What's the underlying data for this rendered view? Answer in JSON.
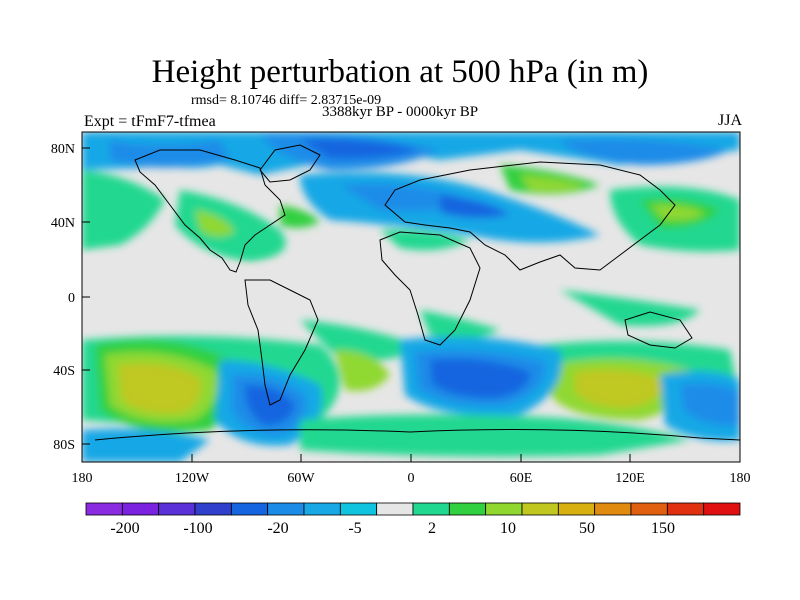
{
  "header": {
    "title": "Height perturbation at 500 hPa (in m)",
    "stats": "rmsd= 8.10746 diff= 2.83715e-09",
    "experiment": "Expt = tFmF7-tfmea",
    "period": "3388kyr BP - 0000kyr BP",
    "season": "JJA"
  },
  "map": {
    "lat_ticks": [
      "80N",
      "40N",
      "0",
      "40S",
      "80S"
    ],
    "lon_ticks": [
      "180",
      "120W",
      "60W",
      "0",
      "60E",
      "120E",
      "180"
    ]
  },
  "colorbar": {
    "colors": [
      "#8a2be2",
      "#7a22e0",
      "#5c30d8",
      "#3040cc",
      "#1565e0",
      "#1a8ce8",
      "#18a8e6",
      "#10c4e0",
      "#e6e6e6",
      "#20d890",
      "#30d040",
      "#90d830",
      "#c0c820",
      "#d8b010",
      "#e08a10",
      "#e06010",
      "#e03010",
      "#e01010"
    ],
    "labels": [
      "-200",
      "-100",
      "-20",
      "-5",
      "2",
      "10",
      "50",
      "150"
    ],
    "neutral_color": "#e6e6e6"
  }
}
